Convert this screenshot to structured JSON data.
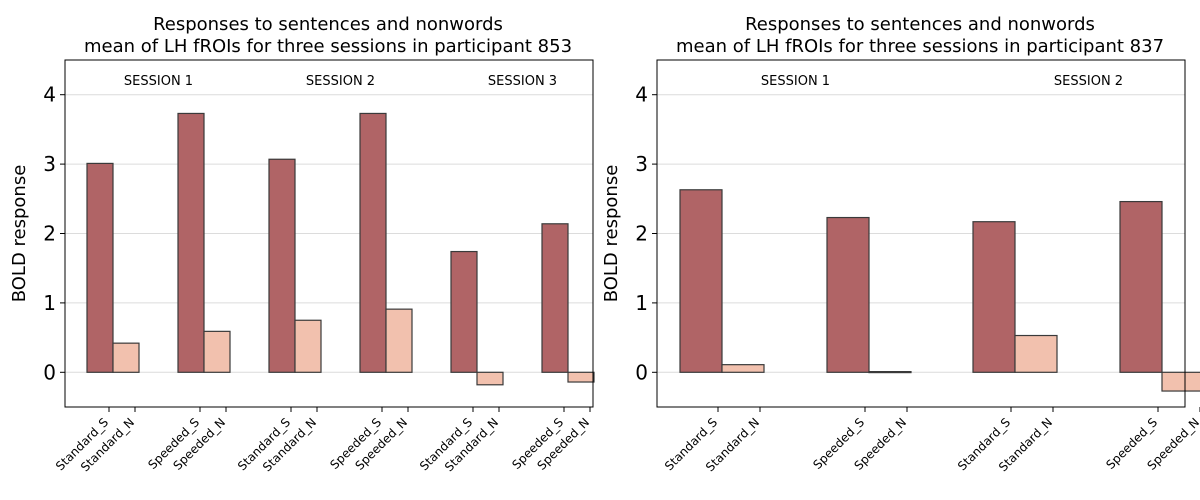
{
  "colors": {
    "sentences": "#b06466",
    "nonwords": "#f2c1ae"
  },
  "chart_data": [
    {
      "type": "bar",
      "title": "Responses to sentences and nonwords",
      "subtitle": "mean of LH fROIs for three sessions in participant 853",
      "ylabel": "BOLD response",
      "ylim": [
        -0.5,
        4.5
      ],
      "yticks": [
        0,
        1,
        2,
        3,
        4
      ],
      "grid": true,
      "sessions": [
        {
          "label": "SESSION 1",
          "categories": [
            "Standard_S",
            "Standard_N",
            "Speeded_S",
            "Speeded_N"
          ],
          "values": [
            3.01,
            0.42,
            3.73,
            0.59
          ]
        },
        {
          "label": "SESSION 2",
          "categories": [
            "Standard_S",
            "Standard_N",
            "Speeded_S",
            "Speeded_N"
          ],
          "values": [
            3.07,
            0.75,
            3.73,
            0.91
          ]
        },
        {
          "label": "SESSION 3",
          "categories": [
            "Standard_S",
            "Standard_N",
            "Speeded_S",
            "Speeded_N"
          ],
          "values": [
            1.74,
            -0.18,
            2.14,
            -0.14
          ]
        }
      ]
    },
    {
      "type": "bar",
      "title": "Responses to sentences and nonwords",
      "subtitle": "mean of LH fROIs for three sessions in participant 837",
      "ylabel": "BOLD response",
      "ylim": [
        -0.5,
        4.5
      ],
      "yticks": [
        0,
        1,
        2,
        3,
        4
      ],
      "grid": true,
      "sessions": [
        {
          "label": "SESSION 1",
          "categories": [
            "Standard_S",
            "Standard_N",
            "Speeded_S",
            "Speeded_N"
          ],
          "values": [
            2.63,
            0.11,
            2.23,
            0.01
          ]
        },
        {
          "label": "SESSION 2",
          "categories": [
            "Standard_S",
            "Standard_N",
            "Speeded_S",
            "Speeded_N"
          ],
          "values": [
            2.17,
            0.53,
            2.46,
            -0.27
          ]
        }
      ]
    }
  ]
}
